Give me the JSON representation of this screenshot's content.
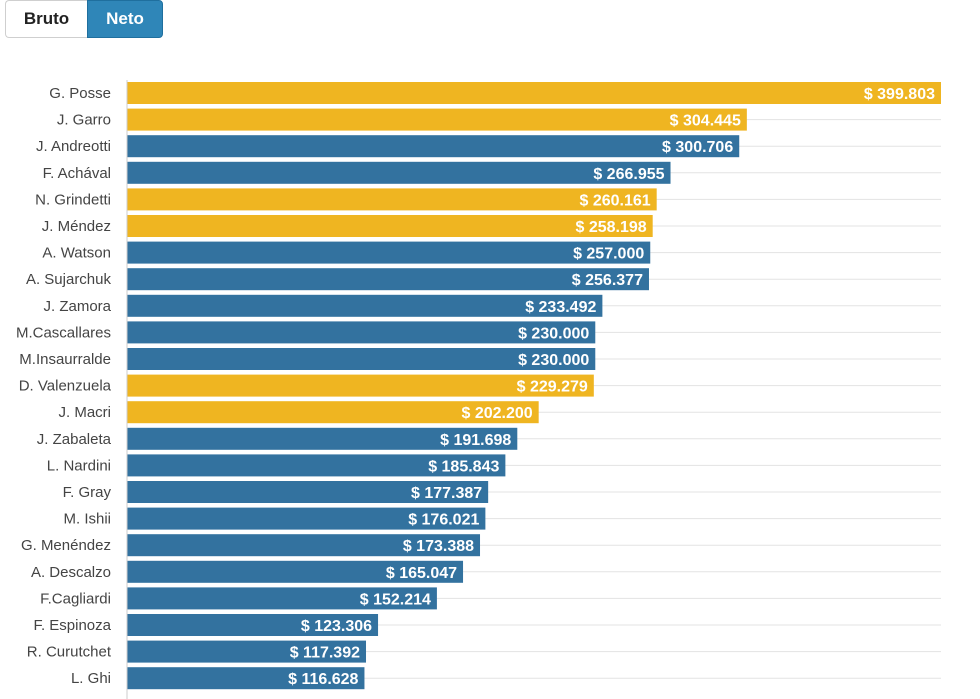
{
  "toggle": {
    "bruto_label": "Bruto",
    "neto_label": "Neto",
    "selected": "Neto"
  },
  "colors": {
    "highlight": "#efb521",
    "default": "#33729f",
    "active_button": "#2f86b8"
  },
  "chart_data": {
    "type": "bar",
    "orientation": "horizontal",
    "title": "",
    "xlabel": "",
    "ylabel": "",
    "currency_prefix": "$ ",
    "xlim": [
      0,
      400000
    ],
    "grid": true,
    "categories": [
      "G. Posse",
      "J. Garro",
      "J. Andreotti",
      "F. Achával",
      "N. Grindetti",
      "J. Méndez",
      "A. Watson",
      "A. Sujarchuk",
      "J. Zamora",
      "M.Cascallares",
      "M.Insaurralde",
      "D. Valenzuela",
      "J. Macri",
      "J. Zabaleta",
      "L. Nardini",
      "F. Gray",
      "M. Ishii",
      "G. Menéndez",
      "A. Descalzo",
      "F.Cagliardi",
      "F. Espinoza",
      "R. Curutchet",
      "L. Ghi"
    ],
    "values": [
      399803,
      304445,
      300706,
      266955,
      260161,
      258198,
      257000,
      256377,
      233492,
      230000,
      230000,
      229279,
      202200,
      191698,
      185843,
      177387,
      176021,
      173388,
      165047,
      152214,
      123306,
      117392,
      116628
    ],
    "value_labels": [
      "$ 399.803",
      "$ 304.445",
      "$ 300.706",
      "$ 266.955",
      "$ 260.161",
      "$ 258.198",
      "$ 257.000",
      "$ 256.377",
      "$ 233.492",
      "$ 230.000",
      "$ 230.000",
      "$ 229.279",
      "$ 202.200",
      "$ 191.698",
      "$ 185.843",
      "$ 177.387",
      "$ 176.021",
      "$ 173.388",
      "$ 165.047",
      "$ 152.214",
      "$ 123.306",
      "$ 117.392",
      "$ 116.628"
    ],
    "highlighted": [
      true,
      true,
      false,
      false,
      true,
      true,
      false,
      false,
      false,
      false,
      false,
      true,
      true,
      false,
      false,
      false,
      false,
      false,
      false,
      false,
      false,
      false,
      false
    ]
  }
}
